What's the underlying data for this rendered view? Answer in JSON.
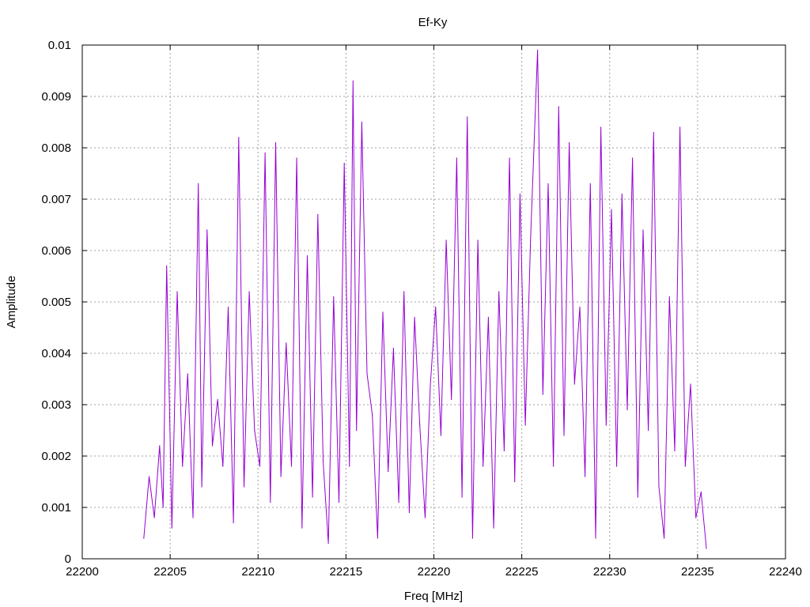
{
  "chart_data": {
    "type": "line",
    "title": "Ef-Ky",
    "xlabel": "Freq [MHz]",
    "ylabel": "Amplitude",
    "xlim": [
      22200,
      22240
    ],
    "ylim": [
      0,
      0.01
    ],
    "x_ticks": [
      "22200",
      "22205",
      "22210",
      "22215",
      "22220",
      "22225",
      "22230",
      "22235",
      "22240"
    ],
    "y_ticks": [
      "0",
      "0.001",
      "0.002",
      "0.003",
      "0.004",
      "0.005",
      "0.006",
      "0.007",
      "0.008",
      "0.009",
      "0.01"
    ],
    "grid": true,
    "legend": "none",
    "series": [
      {
        "color": "#9400d3",
        "x": [
          22203.5,
          22203.8,
          22204.1,
          22204.4,
          22204.6,
          22204.8,
          22205.1,
          22205.4,
          22205.7,
          22206.0,
          22206.3,
          22206.6,
          22206.8,
          22207.1,
          22207.4,
          22207.7,
          22208.0,
          22208.3,
          22208.6,
          22208.9,
          22209.2,
          22209.5,
          22209.8,
          22210.1,
          22210.4,
          22210.7,
          22211.0,
          22211.3,
          22211.6,
          22211.9,
          22212.2,
          22212.5,
          22212.8,
          22213.1,
          22213.4,
          22213.7,
          22214.0,
          22214.3,
          22214.6,
          22214.9,
          22215.2,
          22215.4,
          22215.6,
          22215.9,
          22216.2,
          22216.5,
          22216.8,
          22217.1,
          22217.4,
          22217.7,
          22218.0,
          22218.3,
          22218.6,
          22218.9,
          22219.2,
          22219.5,
          22219.8,
          22220.1,
          22220.4,
          22220.7,
          22221.0,
          22221.3,
          22221.6,
          22221.9,
          22222.2,
          22222.5,
          22222.8,
          22223.1,
          22223.4,
          22223.7,
          22224.0,
          22224.3,
          22224.6,
          22224.9,
          22225.2,
          22225.5,
          22225.9,
          22226.2,
          22226.5,
          22226.8,
          22227.1,
          22227.4,
          22227.7,
          22228.0,
          22228.3,
          22228.6,
          22228.9,
          22229.2,
          22229.5,
          22229.8,
          22230.1,
          22230.4,
          22230.7,
          22231.0,
          22231.3,
          22231.6,
          22231.9,
          22232.2,
          22232.5,
          22232.8,
          22233.1,
          22233.4,
          22233.7,
          22234.0,
          22234.3,
          22234.6,
          22234.9,
          22235.2,
          22235.5
        ],
        "values": [
          0.0004,
          0.0016,
          0.0008,
          0.0022,
          0.001,
          0.0057,
          0.0006,
          0.0052,
          0.0018,
          0.0036,
          0.0008,
          0.0073,
          0.0014,
          0.0064,
          0.0022,
          0.0031,
          0.0018,
          0.0049,
          0.0007,
          0.0082,
          0.0014,
          0.0052,
          0.0025,
          0.0018,
          0.0079,
          0.0011,
          0.0081,
          0.0016,
          0.0042,
          0.0018,
          0.0078,
          0.0006,
          0.0059,
          0.0012,
          0.0067,
          0.0019,
          0.0003,
          0.0051,
          0.0011,
          0.0077,
          0.0018,
          0.0093,
          0.0025,
          0.0085,
          0.0036,
          0.0028,
          0.0004,
          0.0048,
          0.0017,
          0.0041,
          0.0011,
          0.0052,
          0.0009,
          0.0047,
          0.0026,
          0.0008,
          0.0034,
          0.0049,
          0.0024,
          0.0062,
          0.0031,
          0.0078,
          0.0012,
          0.0086,
          0.0004,
          0.0062,
          0.0018,
          0.0047,
          0.0006,
          0.0052,
          0.0021,
          0.0078,
          0.0015,
          0.0071,
          0.0026,
          0.0062,
          0.0099,
          0.0032,
          0.0073,
          0.0018,
          0.0088,
          0.0024,
          0.0081,
          0.0034,
          0.0049,
          0.0016,
          0.0073,
          0.0004,
          0.0084,
          0.0026,
          0.0068,
          0.0018,
          0.0071,
          0.0029,
          0.0078,
          0.0012,
          0.0064,
          0.0025,
          0.0083,
          0.0014,
          0.0004,
          0.0051,
          0.0021,
          0.0084,
          0.0018,
          0.0034,
          0.0008,
          0.0013,
          0.0002
        ]
      }
    ]
  }
}
